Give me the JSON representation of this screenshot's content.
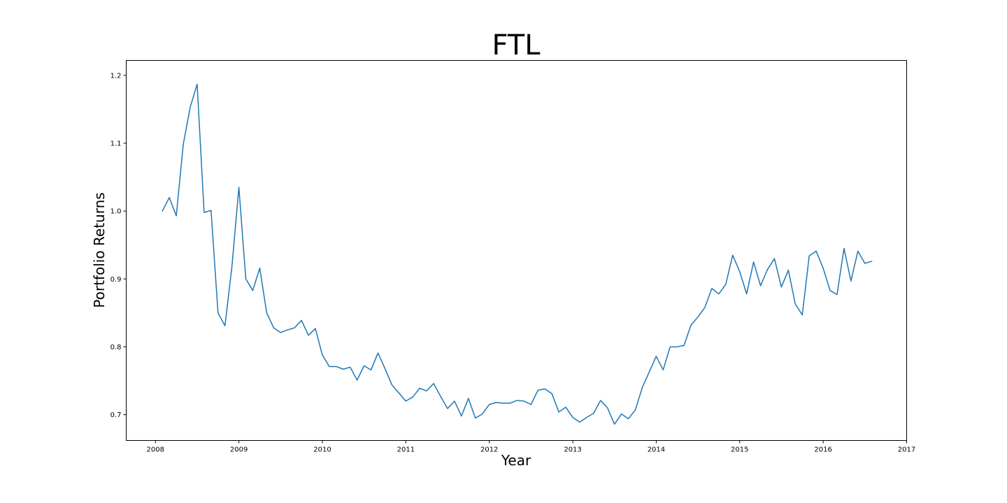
{
  "chart_data": {
    "type": "line",
    "title": "FTL",
    "xlabel": "Year",
    "ylabel": "Portfolio Returns",
    "xlim": [
      2007.65,
      2017.0
    ],
    "ylim": [
      0.662,
      1.222
    ],
    "x_ticks": [
      2008,
      2009,
      2010,
      2011,
      2012,
      2013,
      2014,
      2015,
      2016,
      2017
    ],
    "x_tick_labels": [
      "2008",
      "2009",
      "2010",
      "2011",
      "2012",
      "2013",
      "2014",
      "2015",
      "2016",
      "2017"
    ],
    "y_ticks": [
      0.7,
      0.8,
      0.9,
      1.0,
      1.1,
      1.2
    ],
    "y_tick_labels": [
      "0.7",
      "0.8",
      "0.9",
      "1.0",
      "1.1",
      "1.2"
    ],
    "grid": false,
    "colors": {
      "series": "#1f77b4",
      "axes": "#000000",
      "background": "#ffffff"
    },
    "series": [
      {
        "x_start": 2008.083,
        "x_step": 0.08333,
        "values": [
          1.0,
          1.02,
          0.993,
          1.098,
          1.153,
          1.187,
          0.998,
          1.001,
          0.85,
          0.831,
          0.918,
          1.035,
          0.9,
          0.883,
          0.916,
          0.85,
          0.828,
          0.821,
          0.825,
          0.828,
          0.839,
          0.817,
          0.827,
          0.788,
          0.771,
          0.771,
          0.767,
          0.77,
          0.751,
          0.772,
          0.766,
          0.791,
          0.768,
          0.744,
          0.732,
          0.72,
          0.726,
          0.739,
          0.735,
          0.746,
          0.727,
          0.709,
          0.72,
          0.698,
          0.724,
          0.695,
          0.701,
          0.715,
          0.718,
          0.717,
          0.717,
          0.721,
          0.72,
          0.715,
          0.736,
          0.738,
          0.731,
          0.704,
          0.711,
          0.696,
          0.689,
          0.696,
          0.702,
          0.721,
          0.71,
          0.686,
          0.701,
          0.694,
          0.707,
          0.74,
          0.763,
          0.786,
          0.766,
          0.8,
          0.8,
          0.802,
          0.832,
          0.844,
          0.858,
          0.886,
          0.878,
          0.892,
          0.935,
          0.911,
          0.878,
          0.925,
          0.89,
          0.914,
          0.93,
          0.888,
          0.913,
          0.863,
          0.847,
          0.934,
          0.941,
          0.916,
          0.883,
          0.877,
          0.945,
          0.897,
          0.941,
          0.923,
          0.926
        ]
      }
    ]
  }
}
